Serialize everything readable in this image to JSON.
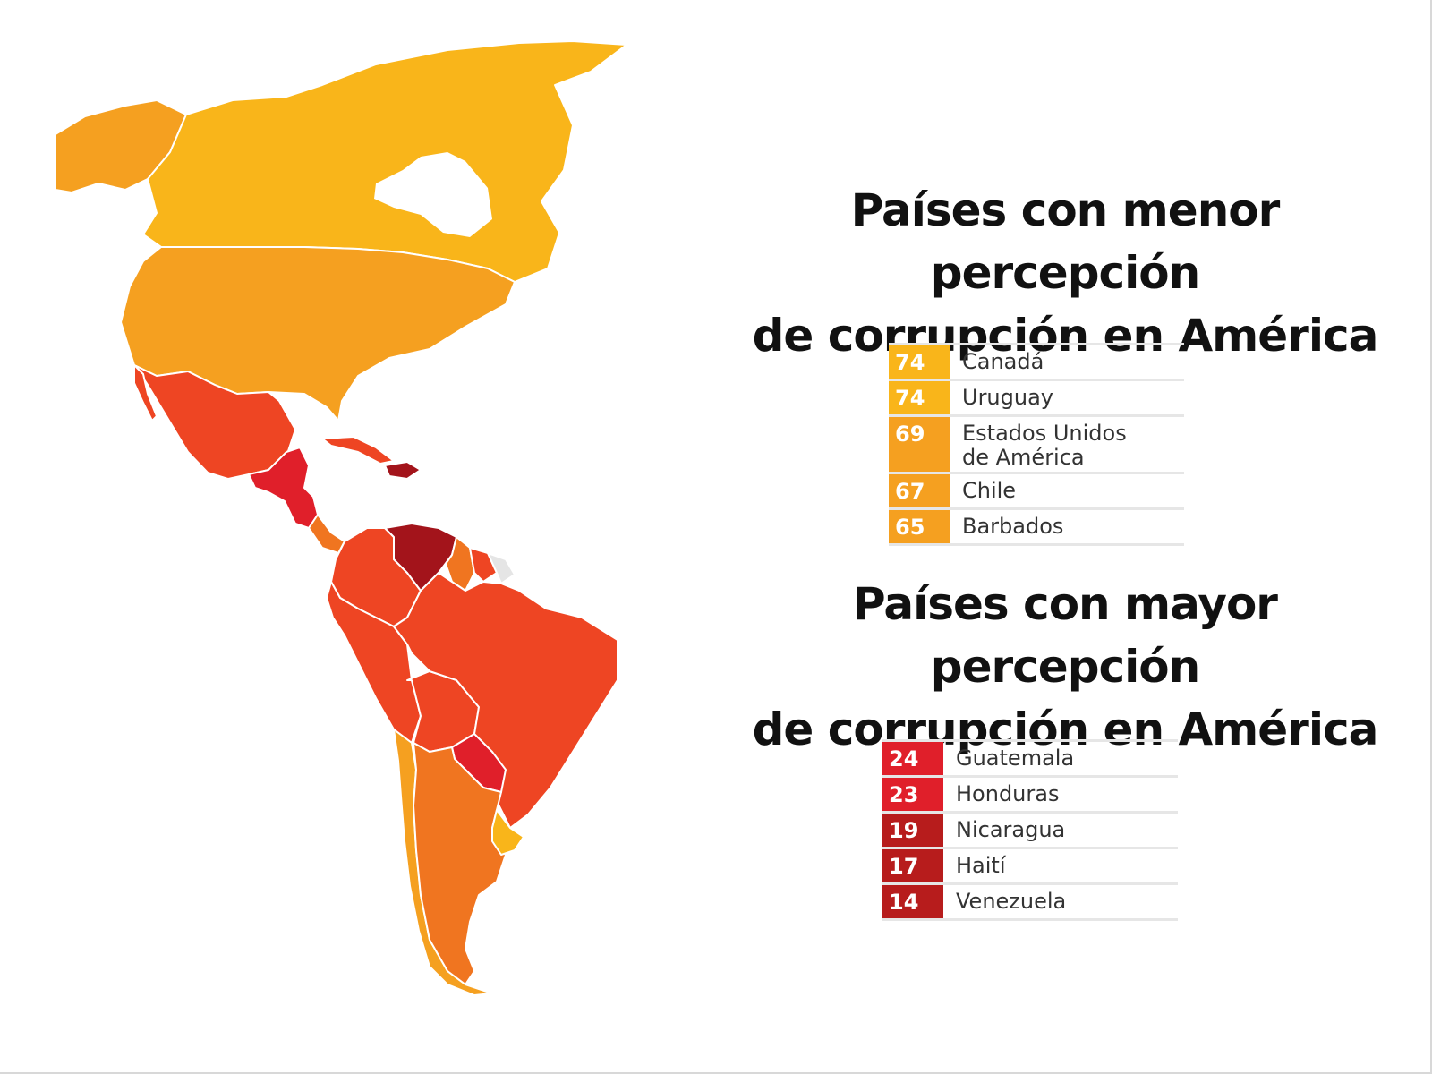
{
  "heading_low": [
    "Países con menor percepción",
    "de corrupción en América"
  ],
  "heading_high": [
    "Países con mayor percepción",
    "de corrupción en América"
  ],
  "least_corrupt": [
    {
      "score": "74",
      "country": "Canadá",
      "color": "#F9B51A"
    },
    {
      "score": "74",
      "country": "Uruguay",
      "color": "#F9B51A"
    },
    {
      "score": "69",
      "country": "Estados Unidos de América",
      "lines": [
        "Estados Unidos",
        "de América"
      ],
      "color": "#F5A020"
    },
    {
      "score": "67",
      "country": "Chile",
      "color": "#F5A020"
    },
    {
      "score": "65",
      "country": "Barbados",
      "color": "#F5A020"
    }
  ],
  "most_corrupt": [
    {
      "score": "24",
      "country": "Guatemala",
      "color": "#E01F2A"
    },
    {
      "score": "23",
      "country": "Honduras",
      "color": "#E01F2A"
    },
    {
      "score": "19",
      "country": "Nicaragua",
      "color": "#B71C1C"
    },
    {
      "score": "17",
      "country": "Haití",
      "color": "#B71C1C"
    },
    {
      "score": "14",
      "country": "Venezuela",
      "color": "#B71C1C"
    }
  ],
  "map_colors": {
    "yellow": "#F9B51A",
    "light_orange": "#F5A020",
    "orange": "#F07520",
    "red_orange": "#EE4523",
    "red": "#E01F2A",
    "dark_red": "#A3141B",
    "no_data": "#E5E5E5"
  }
}
